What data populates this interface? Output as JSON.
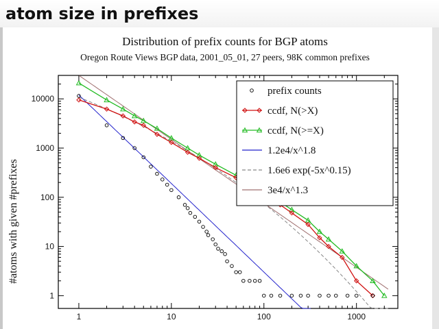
{
  "slide": {
    "title": "atom size in prefixes"
  },
  "chart_data": {
    "type": "scatter",
    "title": "Distribution of prefix counts for BGP atoms",
    "subtitle": "Oregon Route Views BGP data, 2001_05_01, 27 peers, 98K common prefixes",
    "xlabel": "",
    "ylabel": "#atoms with given #prefixes",
    "xscale": "log",
    "yscale": "log",
    "xlim": [
      0.6,
      2800
    ],
    "ylim": [
      0.55,
      30000
    ],
    "x_ticks": [
      1,
      10,
      100,
      1000
    ],
    "x_tick_labels": [
      "1",
      "10",
      "100",
      "1000"
    ],
    "y_ticks": [
      1,
      10,
      100,
      1000,
      10000
    ],
    "y_tick_labels": [
      "1",
      "10",
      "100",
      "1000",
      "10000"
    ],
    "grid": false,
    "legend_position": "top-right",
    "colors": {
      "prefix_counts": "#000000",
      "ccdf_gt": "#d01010",
      "ccdf_ge": "#22bb22",
      "fit_power_1_8": "#2222cc",
      "fit_exp": "#888888",
      "fit_power_1_3": "#a07070",
      "background": "#ffffff"
    },
    "series": [
      {
        "name": "prefix counts",
        "kind": "points",
        "marker": "circle",
        "x": [
          1,
          2,
          3,
          4,
          5,
          6,
          7,
          8,
          9,
          10,
          12,
          14,
          15,
          16,
          18,
          20,
          22,
          24,
          25,
          28,
          30,
          32,
          35,
          38,
          40,
          45,
          50,
          55,
          60,
          70,
          80,
          90,
          100,
          120,
          150,
          200,
          250,
          300,
          400,
          500,
          600,
          800,
          1000,
          1500
        ],
        "y": [
          11500,
          2900,
          1600,
          1000,
          650,
          420,
          300,
          230,
          180,
          140,
          100,
          70,
          60,
          48,
          40,
          32,
          25,
          20,
          17,
          14,
          11,
          9,
          8,
          7,
          5,
          4,
          3,
          3,
          2,
          2,
          2,
          2,
          1,
          1,
          1,
          1,
          1,
          1,
          1,
          1,
          1,
          1,
          1,
          1
        ]
      },
      {
        "name": "ccdf, N(>X)",
        "kind": "line",
        "marker": "diamond",
        "x": [
          1,
          2,
          3,
          4,
          5,
          7,
          10,
          15,
          20,
          30,
          50,
          70,
          100,
          150,
          200,
          300,
          400,
          500,
          700,
          1000,
          1500
        ],
        "y": [
          9500,
          6200,
          4500,
          3400,
          2900,
          1900,
          1300,
          820,
          620,
          400,
          250,
          170,
          110,
          70,
          48,
          28,
          15,
          10,
          6,
          2,
          1
        ]
      },
      {
        "name": "ccdf, N(>=X)",
        "kind": "line",
        "marker": "triangle",
        "x": [
          1,
          2,
          3,
          4,
          5,
          7,
          10,
          15,
          20,
          30,
          50,
          70,
          100,
          150,
          200,
          300,
          400,
          500,
          700,
          1000,
          1500,
          2000
        ],
        "y": [
          21000,
          9500,
          6200,
          4500,
          3600,
          2500,
          1600,
          1000,
          720,
          470,
          280,
          190,
          120,
          80,
          56,
          34,
          20,
          14,
          8,
          4,
          2,
          1
        ]
      },
      {
        "name": "1.2e4/x^1.8",
        "kind": "fit",
        "formula": "1.2e4 * x^-1.8",
        "x_range": [
          1,
          320
        ]
      },
      {
        "name": "1.6e6 exp(-5x^0.15)",
        "kind": "fit",
        "formula": "1.6e6 * exp(-5 * x^0.15)",
        "x_range": [
          1,
          2200
        ]
      },
      {
        "name": "3e4/x^1.3",
        "kind": "fit",
        "formula": "3e4 * x^-1.3",
        "x_range": [
          1,
          2200
        ]
      }
    ]
  }
}
